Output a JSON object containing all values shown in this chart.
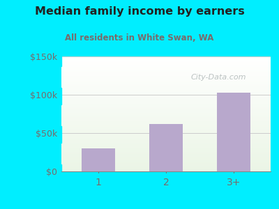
{
  "title": "Median family income by earners",
  "subtitle": "All residents in White Swan, WA",
  "categories": [
    "1",
    "2",
    "3+"
  ],
  "values": [
    30000,
    62000,
    103000
  ],
  "bar_color": "#b8a8cc",
  "background_outer": "#00eeff",
  "title_color": "#222222",
  "subtitle_color": "#7a6a6a",
  "tick_color": "#7a6a6a",
  "ylim": [
    0,
    150000
  ],
  "yticks": [
    0,
    50000,
    100000,
    150000
  ],
  "ytick_labels": [
    "$0",
    "$50k",
    "$100k",
    "$150k"
  ],
  "watermark": "City-Data.com",
  "watermark_color": "#b0b8b8",
  "grid_color": "#cccccc"
}
